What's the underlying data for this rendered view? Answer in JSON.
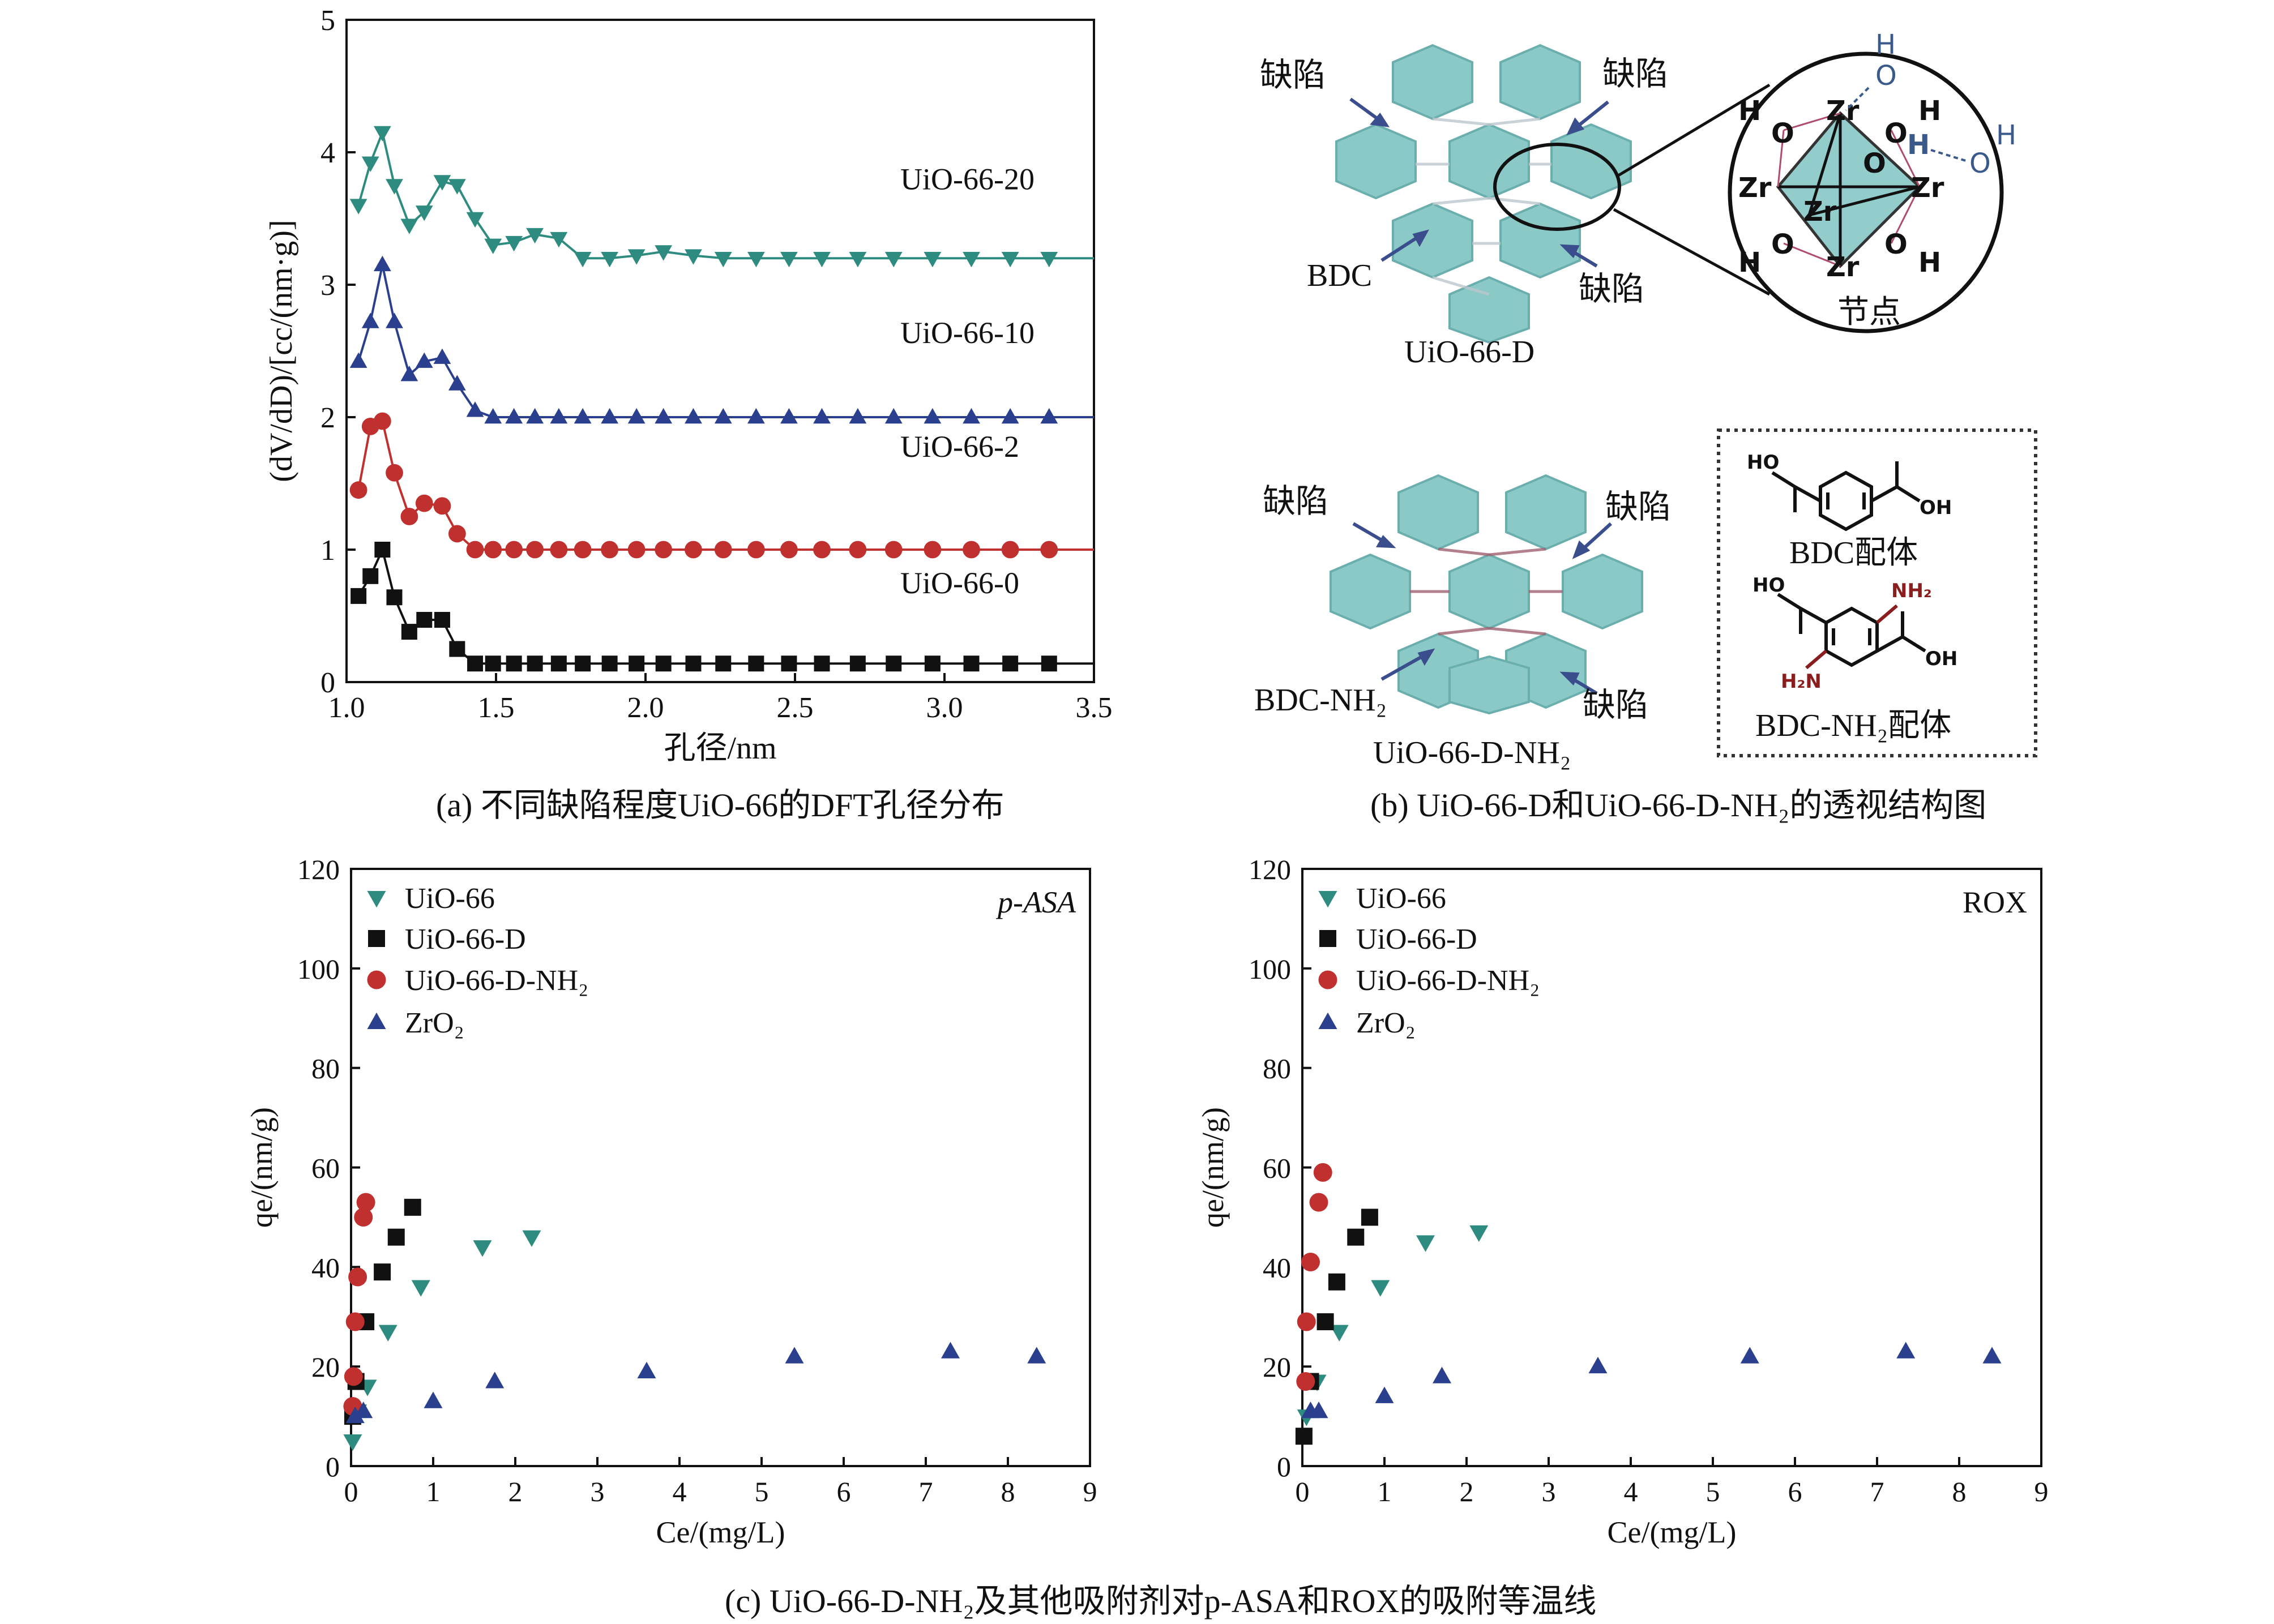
{
  "captions": {
    "a": "(a) 不同缺陷程度UiO-66的DFT孔径分布",
    "b": "(b) UiO-66-D和UiO-66-D-NH₂的透视结构图",
    "c": "(c) UiO-66-D-NH₂及其他吸附剂对p-ASA和ROX的吸附等温线"
  },
  "diagram": {
    "top_defect_labels": [
      "缺陷",
      "缺陷",
      "缺陷"
    ],
    "top_linker_label": "BDC",
    "top_name": "UiO-66-D",
    "node_label": "节点",
    "bottom_defect_labels": [
      "缺陷",
      "缺陷",
      "缺陷"
    ],
    "bottom_linker_label": "BDC-NH₂",
    "bottom_name": "UiO-66-D-NH₂",
    "ligand1_label": "BDC配体",
    "ligand2_label": "BDC-NH₂配体",
    "zr": "Zr",
    "o": "O",
    "h": "H",
    "ho": "HO",
    "oh": "OH",
    "nh2": "NH₂",
    "h2n": "H₂N"
  },
  "chart_data": [
    {
      "type": "line",
      "xlabel": "孔径/nm",
      "ylabel": "(dV/dD)/[cc/(nm·g)]",
      "xlim": [
        1.0,
        3.5
      ],
      "ylim": [
        0,
        5
      ],
      "xticks": [
        "1.0",
        "1.5",
        "2.0",
        "2.5",
        "3.0",
        "3.5"
      ],
      "yticks": [
        "0",
        "1",
        "2",
        "3",
        "4",
        "5"
      ],
      "grid": false,
      "legend": "labels beside curves",
      "x": [
        1.04,
        1.08,
        1.12,
        1.16,
        1.21,
        1.26,
        1.32,
        1.37,
        1.43,
        1.49,
        1.56,
        1.63,
        1.71,
        1.79,
        1.88,
        1.97,
        2.06,
        2.16,
        2.26,
        2.37,
        2.48,
        2.59,
        2.71,
        2.83,
        2.96,
        3.09,
        3.22,
        3.35
      ],
      "series": [
        {
          "name": "UiO-66-20",
          "marker": "triangle-down",
          "color": "#2e8b7f",
          "values": [
            3.6,
            3.92,
            4.15,
            3.75,
            3.45,
            3.55,
            3.78,
            3.75,
            3.5,
            3.3,
            3.32,
            3.38,
            3.35,
            3.2,
            3.2,
            3.22,
            3.25,
            3.22,
            3.2,
            3.2,
            3.2,
            3.2,
            3.2,
            3.2,
            3.2,
            3.2,
            3.2,
            3.2
          ]
        },
        {
          "name": "UiO-66-10",
          "marker": "triangle-up",
          "color": "#2b3f8f",
          "values": [
            2.42,
            2.72,
            3.15,
            2.72,
            2.32,
            2.42,
            2.45,
            2.25,
            2.05,
            2.0,
            2.0,
            2.0,
            2.0,
            2.0,
            2.0,
            2.0,
            2.0,
            2.0,
            2.0,
            2.0,
            2.0,
            2.0,
            2.0,
            2.0,
            2.0,
            2.0,
            2.0,
            2.0
          ]
        },
        {
          "name": "UiO-66-2",
          "marker": "circle",
          "color": "#c0302f",
          "values": [
            1.45,
            1.93,
            1.97,
            1.58,
            1.25,
            1.35,
            1.33,
            1.12,
            1.0,
            1.0,
            1.0,
            1.0,
            1.0,
            1.0,
            1.0,
            1.0,
            1.0,
            1.0,
            1.0,
            1.0,
            1.0,
            1.0,
            1.0,
            1.0,
            1.0,
            1.0,
            1.0,
            1.0
          ]
        },
        {
          "name": "UiO-66-0",
          "marker": "square",
          "color": "#111111",
          "values": [
            0.65,
            0.8,
            1.0,
            0.64,
            0.38,
            0.47,
            0.47,
            0.25,
            0.14,
            0.14,
            0.14,
            0.14,
            0.14,
            0.14,
            0.14,
            0.14,
            0.14,
            0.14,
            0.14,
            0.14,
            0.14,
            0.14,
            0.14,
            0.14,
            0.14,
            0.14,
            0.14,
            0.14
          ]
        }
      ]
    },
    {
      "type": "scatter",
      "title": "p-ASA",
      "xlabel": "Ce/(mg/L)",
      "ylabel": "qe/(nm/g)",
      "xlim": [
        0,
        9
      ],
      "ylim": [
        0,
        120
      ],
      "xticks": [
        "0",
        "1",
        "2",
        "3",
        "4",
        "5",
        "6",
        "7",
        "8",
        "9"
      ],
      "yticks": [
        "0",
        "20",
        "40",
        "60",
        "80",
        "100",
        "120"
      ],
      "grid": false,
      "legend": "top-left",
      "series": [
        {
          "name": "UiO-66",
          "marker": "triangle-down",
          "color": "#2e8b7f",
          "x": [
            0.02,
            0.08,
            0.2,
            0.45,
            0.85,
            1.6,
            2.2
          ],
          "y": [
            5,
            11,
            16,
            27,
            36,
            44,
            46
          ]
        },
        {
          "name": "UiO-66-D",
          "marker": "square",
          "color": "#111111",
          "x": [
            0.02,
            0.06,
            0.18,
            0.38,
            0.55,
            0.75
          ],
          "y": [
            10,
            17,
            29,
            39,
            46,
            52
          ]
        },
        {
          "name": "UiO-66-D-NH₂",
          "marker": "circle",
          "color": "#c0302f",
          "x": [
            0.02,
            0.03,
            0.05,
            0.08,
            0.15,
            0.18
          ],
          "y": [
            12,
            18,
            29,
            38,
            50,
            53
          ]
        },
        {
          "name": "ZrO₂",
          "marker": "triangle-up",
          "color": "#2b3f8f",
          "x": [
            0.05,
            0.15,
            1.0,
            1.75,
            3.6,
            5.4,
            7.3,
            8.35
          ],
          "y": [
            10,
            11,
            13,
            17,
            19,
            22,
            23,
            22
          ]
        }
      ]
    },
    {
      "type": "scatter",
      "title": "ROX",
      "xlabel": "Ce/(mg/L)",
      "ylabel": "qe/(nm/g)",
      "xlim": [
        0,
        9
      ],
      "ylim": [
        0,
        120
      ],
      "xticks": [
        "0",
        "1",
        "2",
        "3",
        "4",
        "5",
        "6",
        "7",
        "8",
        "9"
      ],
      "yticks": [
        "0",
        "20",
        "40",
        "60",
        "80",
        "100",
        "120"
      ],
      "grid": false,
      "legend": "top-left",
      "series": [
        {
          "name": "UiO-66",
          "marker": "triangle-down",
          "color": "#2e8b7f",
          "x": [
            0.05,
            0.18,
            0.45,
            0.95,
            1.5,
            2.15
          ],
          "y": [
            10,
            17,
            27,
            36,
            45,
            47
          ]
        },
        {
          "name": "UiO-66-D",
          "marker": "square",
          "color": "#111111",
          "x": [
            0.02,
            0.1,
            0.28,
            0.42,
            0.65,
            0.82
          ],
          "y": [
            6,
            17,
            29,
            37,
            46,
            50
          ]
        },
        {
          "name": "UiO-66-D-NH₂",
          "marker": "circle",
          "color": "#c0302f",
          "x": [
            0.04,
            0.05,
            0.1,
            0.2,
            0.25
          ],
          "y": [
            17,
            29,
            41,
            53,
            59
          ]
        },
        {
          "name": "ZrO₂",
          "marker": "triangle-up",
          "color": "#2b3f8f",
          "x": [
            0.1,
            0.2,
            1.0,
            1.7,
            3.6,
            5.45,
            7.35,
            8.4
          ],
          "y": [
            11,
            11,
            14,
            18,
            20,
            22,
            23,
            22
          ]
        }
      ]
    }
  ]
}
